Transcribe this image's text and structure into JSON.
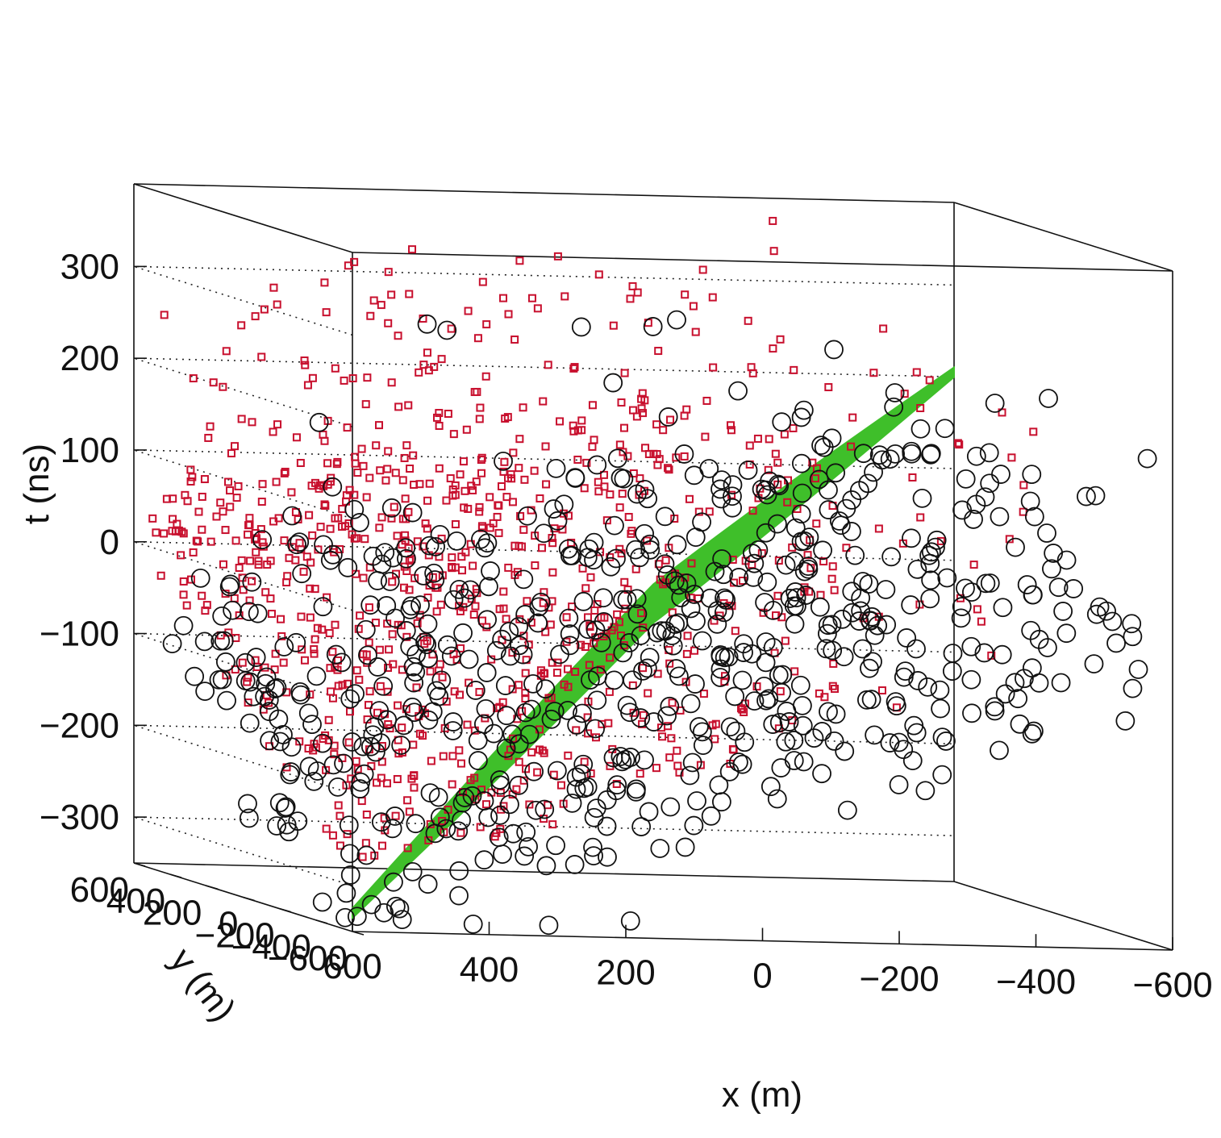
{
  "chart_data": {
    "type": "scatter",
    "projection": "3d",
    "title": "",
    "x_axis": {
      "label": "x (m)",
      "range": [
        -600,
        600
      ],
      "reversed": true,
      "ticks": [
        600,
        400,
        200,
        0,
        -200,
        -400,
        -600
      ],
      "tick_labels": [
        "600",
        "400",
        "200",
        "0",
        "−200",
        "−400",
        "−600"
      ]
    },
    "y_axis": {
      "label": "y (m)",
      "range": [
        -600,
        600
      ],
      "ticks": [
        600,
        400,
        200,
        0,
        -200,
        -400,
        -600
      ],
      "tick_labels": [
        "600",
        "400",
        "200",
        "0",
        "−200",
        "−400",
        "−600"
      ]
    },
    "t_axis": {
      "label": "t (ns)",
      "range": [
        -350,
        390
      ],
      "ticks": [
        300,
        200,
        100,
        0,
        -100,
        -200,
        -300
      ],
      "tick_labels": [
        "300",
        "200",
        "100",
        "0",
        "−100",
        "−200",
        "−300"
      ]
    },
    "grid": "dotted on back walls",
    "legend": "none",
    "series": [
      {
        "marker": "filled-band",
        "color": "#3fbf2a",
        "description_points": [
          [
            600,
            -600,
            -330
          ],
          [
            0,
            0,
            -20
          ],
          [
            -600,
            600,
            205
          ]
        ]
      },
      {
        "marker": "open-square",
        "color": "#c8102e",
        "cluster": {
          "x_range": [
            -600,
            600
          ],
          "y_range": [
            -600,
            600
          ],
          "t_range": [
            -100,
            380
          ],
          "count": 900
        }
      },
      {
        "marker": "open-circle",
        "color": "#111111",
        "cluster": {
          "x_range": [
            -600,
            600
          ],
          "y_range": [
            -600,
            600
          ],
          "t_range": [
            -340,
            320
          ],
          "count": 650
        }
      }
    ]
  }
}
